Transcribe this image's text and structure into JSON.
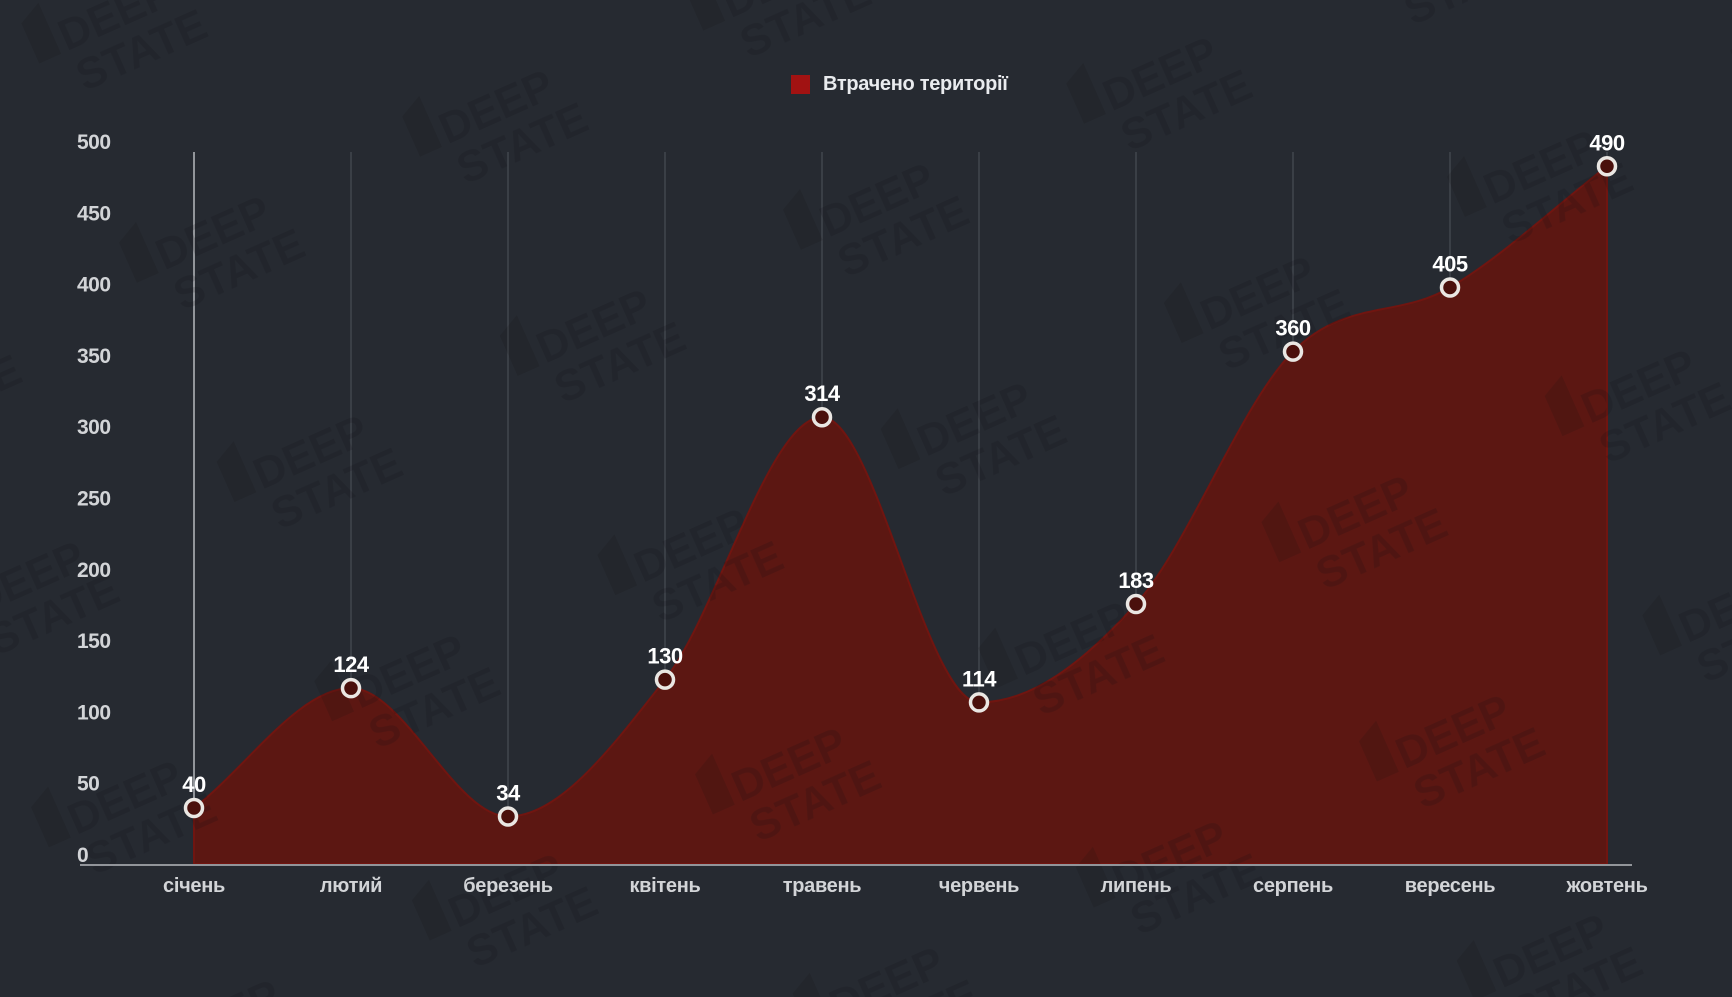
{
  "legend": {
    "label": "Втрачено території",
    "swatch_color": "#a11212"
  },
  "watermark": {
    "line1": "DEEP",
    "line2": "STATE"
  },
  "chart_data": {
    "type": "area",
    "title": "",
    "categories": [
      "січень",
      "лютий",
      "березень",
      "квітень",
      "травень",
      "червень",
      "липень",
      "серпень",
      "вересень",
      "жовтень"
    ],
    "series": [
      {
        "name": "Втрачено території",
        "values": [
          40,
          124,
          34,
          130,
          314,
          114,
          183,
          360,
          405,
          490
        ]
      }
    ],
    "xlabel": "",
    "ylabel": "",
    "ylim": [
      0,
      500
    ],
    "ytick_step": 50,
    "y_ticks": [
      0,
      50,
      100,
      150,
      200,
      250,
      300,
      350,
      400,
      450,
      500
    ],
    "grid": "vertical-per-category",
    "legend_position": "top-center",
    "colors": {
      "background": "#262a31",
      "area_fill": "#5c1712",
      "area_stroke": "#701510",
      "legend_swatch": "#a11212",
      "marker_ring": "#eae7e3",
      "marker_fill": "#4a100c",
      "axis_line": "#92959a",
      "gridline": "rgba(205,210,218,0.25)",
      "tick_label": "#d2d4d7",
      "value_label": "#ffffff",
      "watermark": "#0b0d10"
    }
  }
}
